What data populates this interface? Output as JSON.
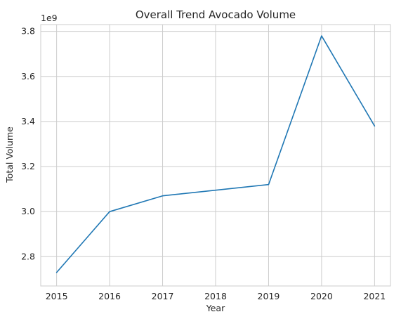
{
  "chart_data": {
    "type": "line",
    "title": "Overall Trend Avocado Volume",
    "xlabel": "Year",
    "ylabel": "Total Volume",
    "y_offset_label": "1e9",
    "x": [
      2015,
      2016,
      2017,
      2018,
      2019,
      2020,
      2021
    ],
    "series": [
      {
        "values": [
          2.73,
          3.0,
          3.07,
          3.095,
          3.12,
          3.78,
          3.38
        ]
      }
    ],
    "xticks": [
      "2015",
      "2016",
      "2017",
      "2018",
      "2019",
      "2020",
      "2021"
    ],
    "yticks": [
      "2.8",
      "3.0",
      "3.2",
      "3.4",
      "3.6",
      "3.8"
    ],
    "ytick_values": [
      2.8,
      3.0,
      3.2,
      3.4,
      3.6,
      3.8
    ],
    "xlim": [
      2014.7,
      2021.3
    ],
    "ylim": [
      2.67,
      3.83
    ],
    "grid": true,
    "legend": "none",
    "colors": {
      "line": "#1f77b4",
      "grid": "#cccccc",
      "axes": "#cccccc",
      "text": "#262626",
      "background": "#ffffff"
    }
  }
}
